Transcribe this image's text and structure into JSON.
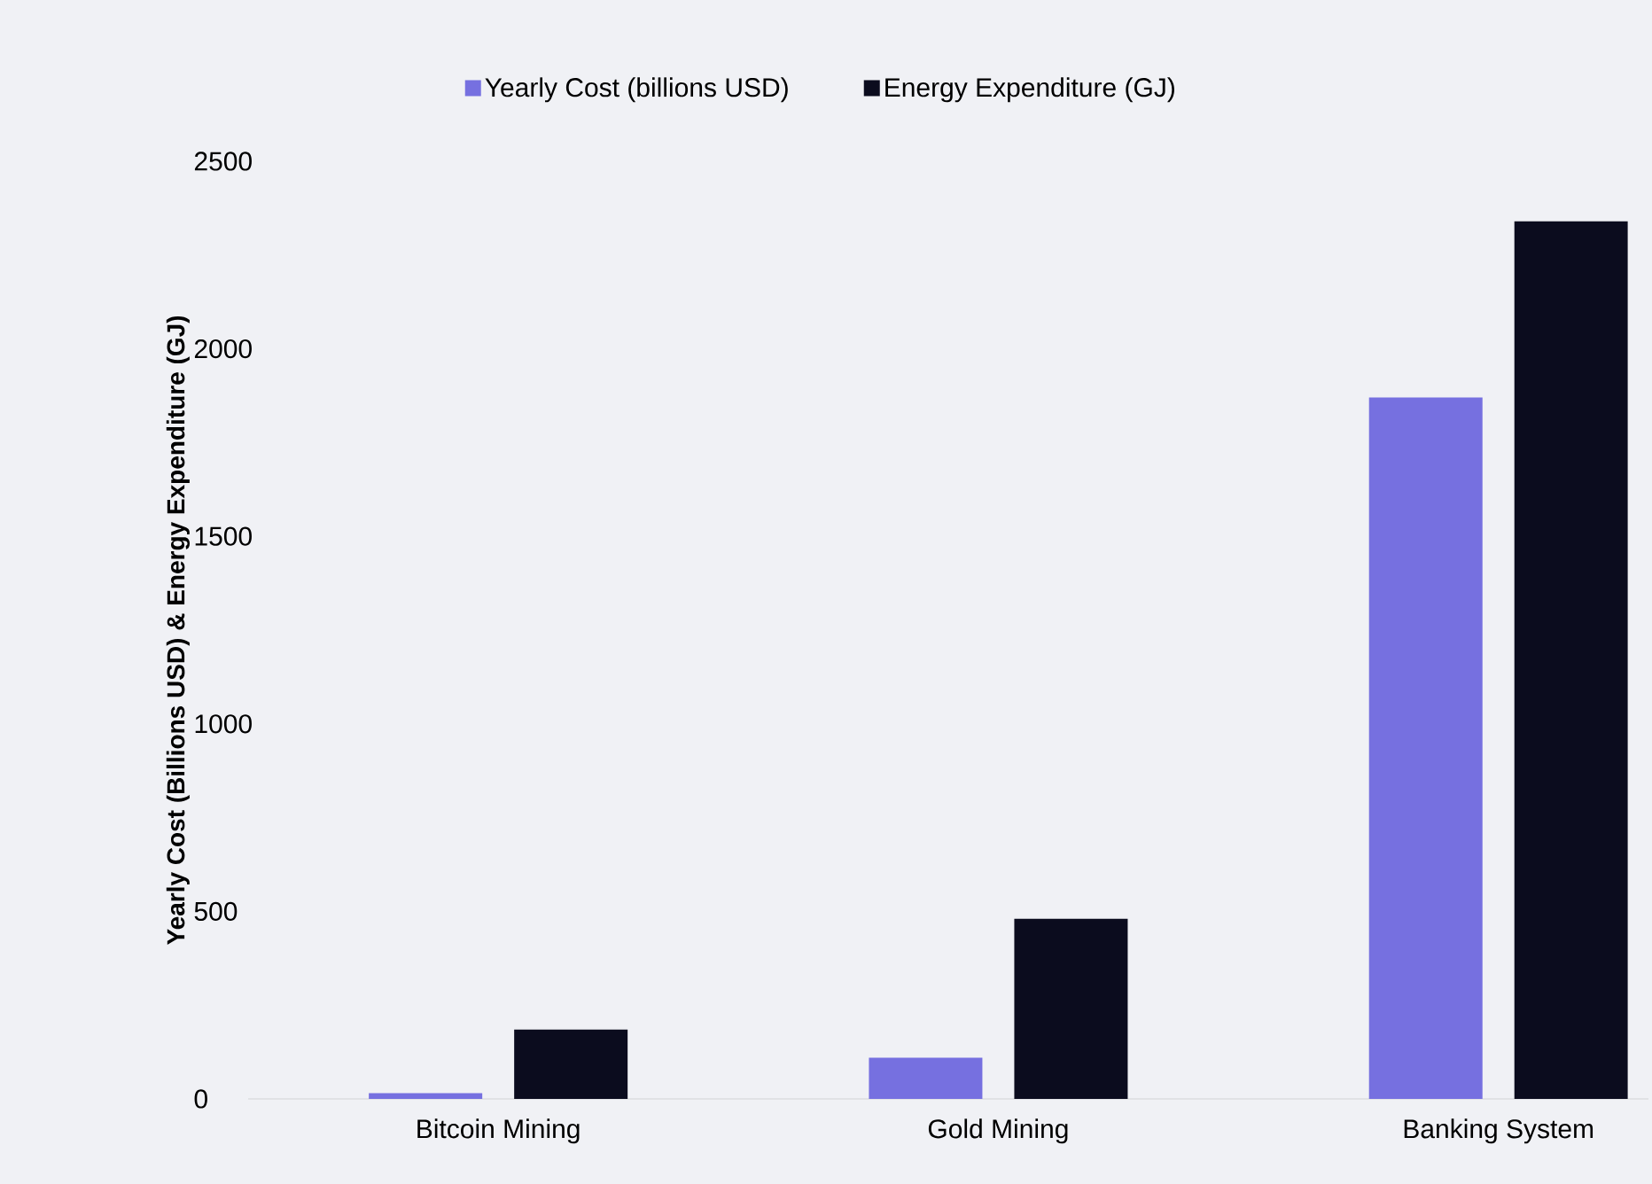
{
  "chart_data": {
    "type": "bar",
    "categories": [
      "Bitcoin Mining",
      "Gold Mining",
      "Banking System"
    ],
    "ylabel": "Yearly Cost (Billions USD) & Energy Expenditure (GJ)",
    "series": [
      {
        "name": "Yearly Cost (billions USD)",
        "color": "#7670e0",
        "values": [
          15,
          110,
          1870
        ]
      },
      {
        "name": "Energy Expenditure (GJ)",
        "color": "#0b0c1e",
        "values": [
          185,
          480,
          2340
        ]
      }
    ],
    "ylim": [
      0,
      2500
    ],
    "yticks": [
      0,
      500,
      1000,
      1500,
      2000,
      2500
    ],
    "legend": "top"
  }
}
